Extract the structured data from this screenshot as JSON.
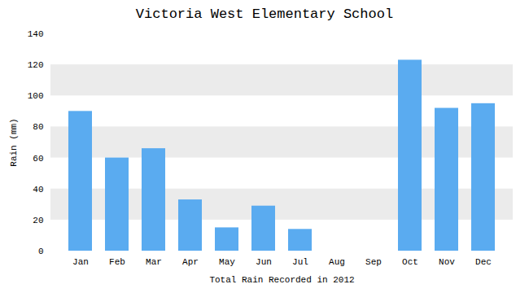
{
  "chart_data": {
    "type": "bar",
    "title": "Victoria West Elementary School",
    "xlabel": "Total Rain Recorded in 2012",
    "ylabel": "Rain (mm)",
    "categories": [
      "Jan",
      "Feb",
      "Mar",
      "Apr",
      "May",
      "Jun",
      "Jul",
      "Aug",
      "Sep",
      "Oct",
      "Nov",
      "Dec"
    ],
    "values": [
      90,
      60,
      66,
      33,
      15,
      29,
      14,
      0,
      0,
      123,
      92,
      95
    ],
    "color": "#5aabf0",
    "ylim": [
      0,
      140
    ],
    "yticks": [
      0,
      20,
      40,
      60,
      80,
      100,
      120,
      140
    ],
    "grid": true
  }
}
